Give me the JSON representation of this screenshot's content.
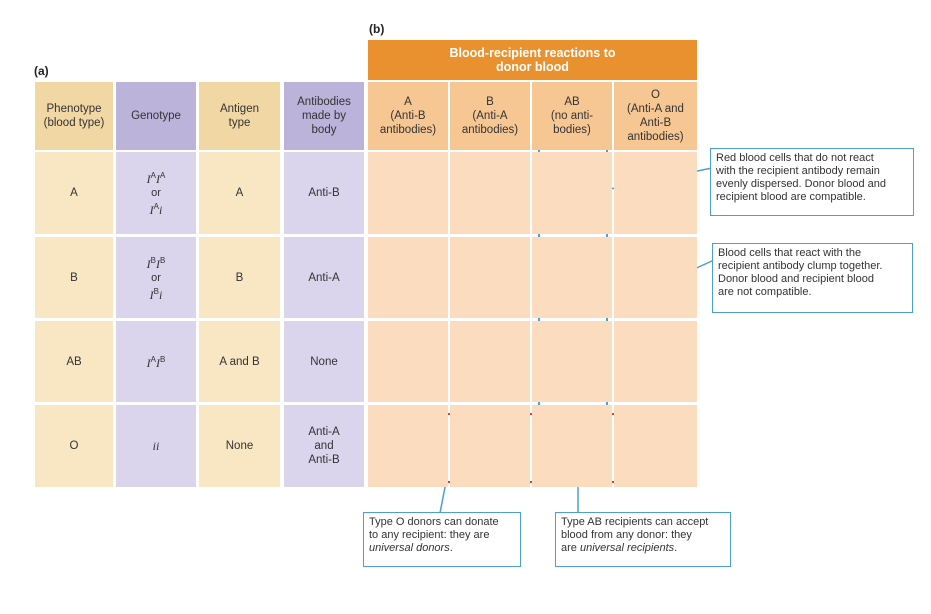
{
  "labels": {
    "a": "(a)",
    "b": "(b)"
  },
  "reactions_title": [
    "Blood-recipient reactions to",
    "donor blood"
  ],
  "headers": [
    [
      "Phenotype",
      "(blood type)"
    ],
    [
      "Genotype"
    ],
    [
      "Antigen",
      "type"
    ],
    [
      "Antibodies",
      "made by",
      "body"
    ]
  ],
  "recipient_headers": [
    [
      "A",
      "(Anti-B",
      "antibodies)"
    ],
    [
      "B",
      "(Anti-A",
      "antibodies)"
    ],
    [
      "AB",
      "(no anti-",
      "bodies)"
    ],
    [
      "O",
      "(Anti-A and",
      "Anti-B",
      "antibodies)"
    ]
  ],
  "rows": [
    {
      "phenotype": "A",
      "genotype": [
        [
          [
            "I",
            "A"
          ],
          [
            "I",
            "A"
          ]
        ],
        "or",
        [
          [
            "I",
            "A"
          ],
          [
            "i"
          ]
        ]
      ],
      "antigen": "A",
      "antibodies": [
        "Anti-B"
      ]
    },
    {
      "phenotype": "B",
      "genotype": [
        [
          [
            "I",
            "B"
          ],
          [
            "I",
            "B"
          ]
        ],
        "or",
        [
          [
            "I",
            "B"
          ],
          [
            "i"
          ]
        ]
      ],
      "antigen": "B",
      "antibodies": [
        "Anti-A"
      ]
    },
    {
      "phenotype": "AB",
      "genotype": [
        [
          [
            "I",
            "A"
          ],
          [
            "I",
            "B"
          ]
        ]
      ],
      "antigen": "A and B",
      "antibodies": [
        "None"
      ]
    },
    {
      "phenotype": "O",
      "genotype": [
        [
          [
            "i"
          ],
          [
            "i"
          ]
        ]
      ],
      "antigen": "None",
      "antibodies": [
        "Anti-A",
        "and",
        "Anti-B"
      ]
    }
  ],
  "callouts": [
    {
      "lines": [
        [
          "Red blood cells that do not react"
        ],
        [
          "with the recipient antibody remain"
        ],
        [
          "evenly dispersed. Donor blood and"
        ],
        [
          "recipient blood are compatible."
        ]
      ]
    },
    {
      "lines": [
        [
          "Blood cells that react with the"
        ],
        [
          "recipient antibody clump together."
        ],
        [
          "Donor blood and recipient blood"
        ],
        [
          "are not compatible."
        ]
      ]
    },
    {
      "lines": [
        [
          "Type O donors can donate"
        ],
        [
          "to any recipient: they are"
        ],
        [
          {
            "text": "universal donors",
            "italic": true
          },
          "."
        ]
      ]
    },
    {
      "lines": [
        [
          "Type AB recipients can accept"
        ],
        [
          "blood from any donor: they"
        ],
        [
          "are ",
          {
            "text": "universal recipients",
            "italic": true
          },
          "."
        ]
      ]
    }
  ]
}
